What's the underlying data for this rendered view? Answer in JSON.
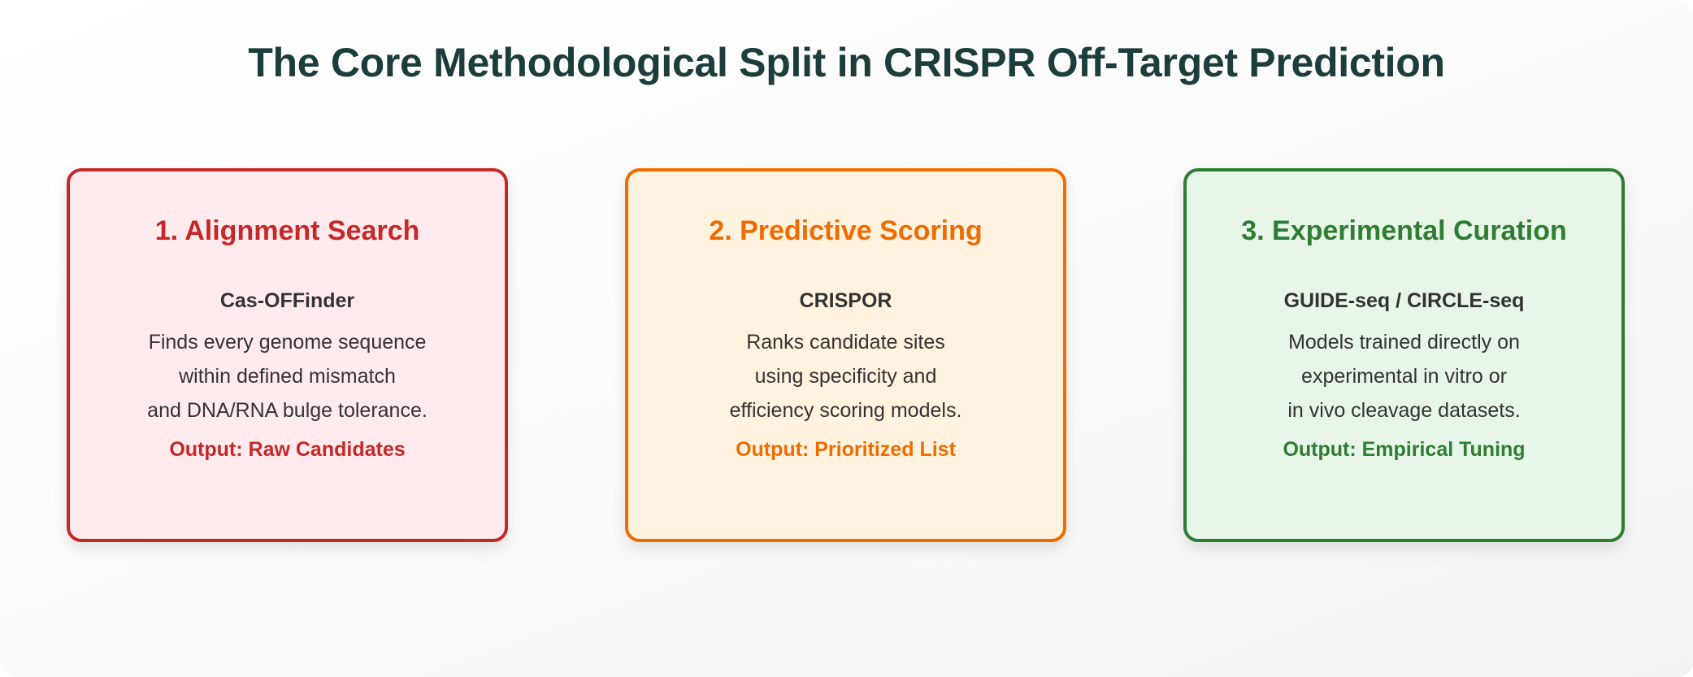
{
  "title": "The Core Methodological Split in CRISPR Off-Target Prediction",
  "cards": [
    {
      "heading": "1. Alignment Search",
      "tool": "Cas-OFFinder",
      "description_lines": [
        "Finds every genome sequence",
        "within defined mismatch",
        "and DNA/RNA bulge tolerance."
      ],
      "output": "Output: Raw Candidates",
      "accent_color": "#c62828",
      "background_color": "#ffebee"
    },
    {
      "heading": "2. Predictive Scoring",
      "tool": "CRISPOR",
      "description_lines": [
        "Ranks candidate sites",
        "using specificity and",
        "efficiency scoring models."
      ],
      "output": "Output: Prioritized List",
      "accent_color": "#ef6c00",
      "background_color": "#fff3e0"
    },
    {
      "heading": "3. Experimental Curation",
      "tool": "GUIDE-seq / CIRCLE-seq",
      "description_lines": [
        "Models trained directly on",
        "experimental in vitro or",
        "in vivo cleavage datasets."
      ],
      "output": "Output: Empirical Tuning",
      "accent_color": "#2e7d32",
      "background_color": "#e8f5e9"
    }
  ]
}
